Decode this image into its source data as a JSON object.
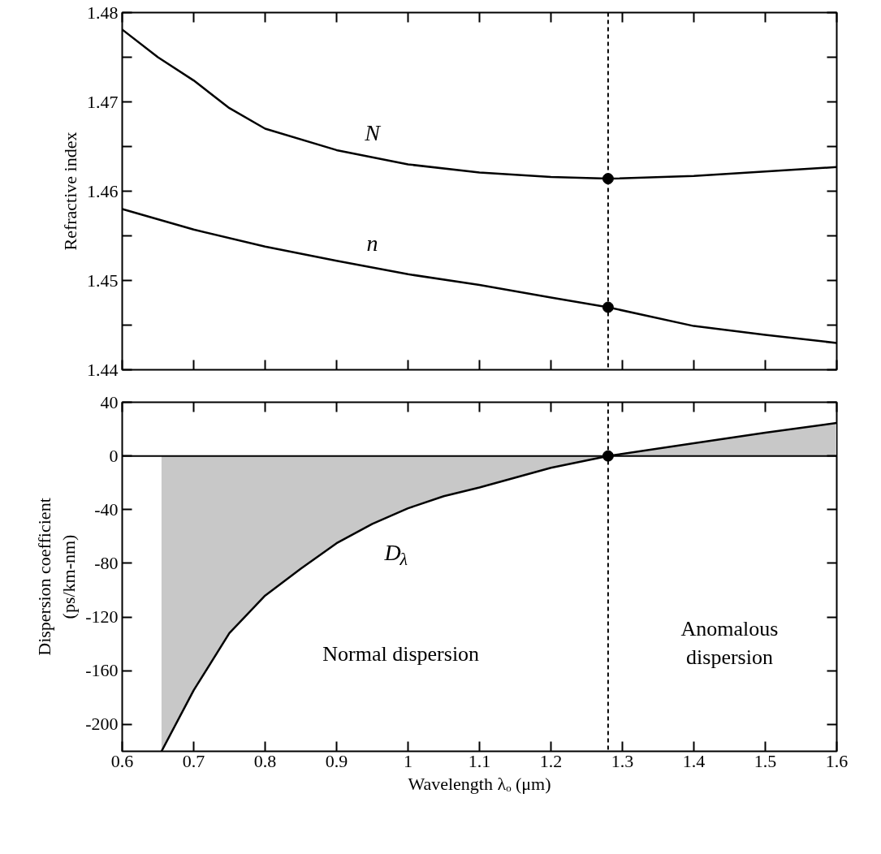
{
  "chart_data": [
    {
      "type": "line",
      "ylabel": "Refractive index",
      "xlim": [
        0.6,
        1.6
      ],
      "ylim": [
        1.44,
        1.48
      ],
      "xticks": [
        {
          "value": 0.6,
          "label": null
        },
        {
          "value": 0.7,
          "label": null
        },
        {
          "value": 0.8,
          "label": null
        },
        {
          "value": 0.9,
          "label": null
        },
        {
          "value": 1.0,
          "label": null
        },
        {
          "value": 1.1,
          "label": null
        },
        {
          "value": 1.2,
          "label": null
        },
        {
          "value": 1.3,
          "label": null
        },
        {
          "value": 1.4,
          "label": null
        },
        {
          "value": 1.5,
          "label": null
        },
        {
          "value": 1.6,
          "label": null
        }
      ],
      "yticks": [
        1.44,
        {
          "value": 1.445,
          "label": null
        },
        1.45,
        {
          "value": 1.455,
          "label": null
        },
        1.46,
        {
          "value": 1.465,
          "label": null
        },
        1.47,
        {
          "value": 1.475,
          "label": null
        },
        1.48
      ],
      "tick_labels": "y",
      "grid": false,
      "series": [
        {
          "name": "N",
          "color": "#000000",
          "x": [
            0.6,
            0.65,
            0.7,
            0.75,
            0.8,
            0.9,
            1.0,
            1.1,
            1.2,
            1.28,
            1.4,
            1.5,
            1.6
          ],
          "values": [
            1.4781,
            1.475,
            1.4724,
            1.4693,
            1.467,
            1.4646,
            1.463,
            1.4621,
            1.4616,
            1.4614,
            1.4617,
            1.4622,
            1.4627
          ]
        },
        {
          "name": "n",
          "color": "#000000",
          "x": [
            0.6,
            0.7,
            0.8,
            0.9,
            1.0,
            1.1,
            1.2,
            1.28,
            1.4,
            1.5,
            1.6
          ],
          "values": [
            1.458,
            1.4557,
            1.4538,
            1.4522,
            1.4507,
            1.4495,
            1.4481,
            1.447,
            1.4449,
            1.4439,
            1.443
          ]
        },
        {
          "type": "scatter",
          "marker": "circle",
          "color": "#000000",
          "x": [
            1.28,
            1.28
          ],
          "values": [
            1.4614,
            1.447
          ]
        }
      ],
      "ref_lines": [
        {
          "axis": "x",
          "value": 1.28,
          "color": "#000000",
          "line_style": "dashed"
        }
      ]
    },
    {
      "type": "line",
      "xlabel": "Wavelength λₒ (μm)",
      "ylabel": "Dispersion coefficient\n(ps/km-nm)",
      "xlim": [
        0.6,
        1.6
      ],
      "ylim": [
        -220,
        40
      ],
      "xticks": [
        0.6,
        0.7,
        0.8,
        0.9,
        1,
        1.1,
        1.2,
        1.3,
        1.4,
        1.5,
        1.6
      ],
      "yticks": [
        -200,
        -160,
        -120,
        -80,
        -40,
        0,
        40
      ],
      "grid": false,
      "series": [
        {
          "type": "area",
          "name": "D$_{λ}$",
          "color": "#c8c8c8",
          "x": [
            0.655,
            0.7,
            0.75,
            0.8,
            0.85,
            0.9,
            0.95,
            1.0,
            1.05,
            1.1,
            1.2,
            1.28,
            1.4,
            1.5,
            1.6
          ],
          "values": [
            -220,
            -174.6,
            -132,
            -104,
            -84,
            -65,
            -50.6,
            -39,
            -30,
            -23.5,
            -8.8,
            0,
            9.5,
            17.3,
            24.6
          ]
        },
        {
          "type": "scatter",
          "marker": "circle",
          "color": "#000000",
          "x": [
            1.28
          ],
          "values": [
            0
          ]
        }
      ],
      "ref_lines": [
        {
          "axis": "y",
          "value": 0,
          "color": "#000000",
          "line_style": "solid"
        },
        {
          "axis": "x",
          "value": 1.28,
          "color": "#000000",
          "line_style": "dashed"
        }
      ],
      "annotations": [
        "Normal dispersion",
        "Anomalous\ndispersion"
      ]
    }
  ]
}
